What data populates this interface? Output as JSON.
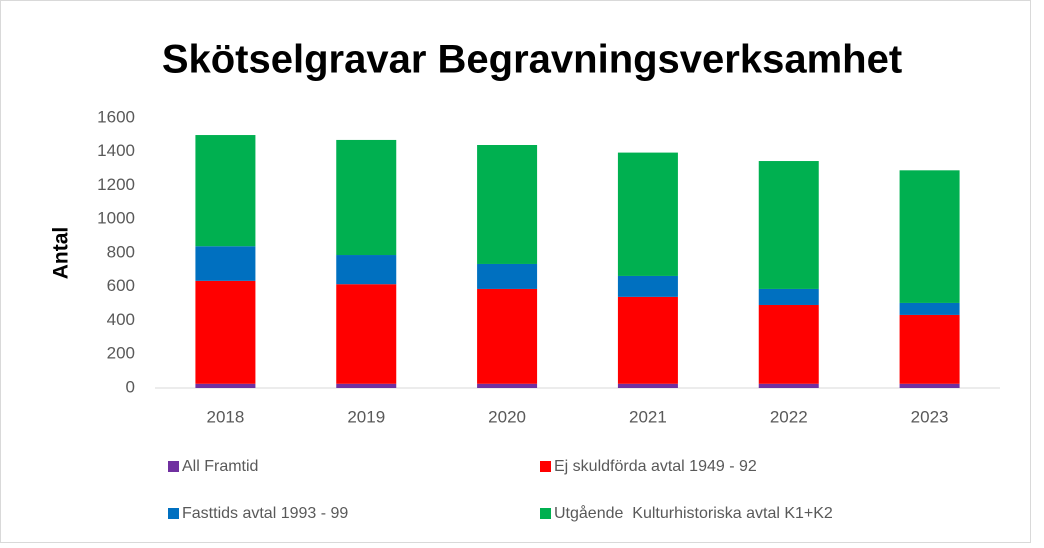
{
  "chart_data": {
    "type": "stacked_bar",
    "title": "Skötselgravar Begravningsverksamhet",
    "y_label": "Antal",
    "categories": [
      "2018",
      "2019",
      "2020",
      "2021",
      "2022",
      "2023"
    ],
    "series": [
      {
        "name": "All Framtid",
        "color": "#7030a0",
        "values": [
          25,
          25,
          25,
          25,
          25,
          25
        ]
      },
      {
        "name": "Ej skuldförda avtal 1949 - 92",
        "color": "#ff0000",
        "values": [
          610,
          590,
          562,
          515,
          467,
          408
        ]
      },
      {
        "name": "Fasttids avtal 1993 - 99",
        "color": "#0070c0",
        "values": [
          205,
          173,
          148,
          124,
          95,
          71
        ]
      },
      {
        "name": "Utgående  Kulturhistoriska avtal K1+K2",
        "color": "#00b050",
        "values": [
          659,
          682,
          705,
          731,
          758,
          786
        ]
      }
    ],
    "ylim": [
      0,
      1600
    ],
    "yticks": [
      0,
      200,
      400,
      600,
      800,
      1000,
      1200,
      1400,
      1600
    ]
  }
}
